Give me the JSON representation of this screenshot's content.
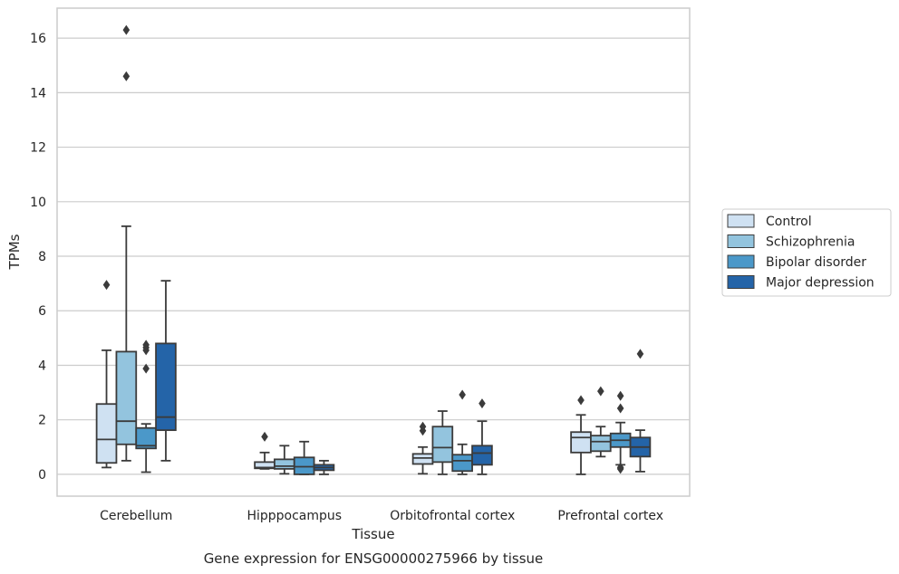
{
  "chart_data": {
    "type": "box",
    "xlabel": "Tissue",
    "ylabel": "TPMs",
    "caption": "Gene expression for ENSG00000275966 by tissue",
    "ylim": [
      -0.8,
      17.1
    ],
    "yticks": [
      0,
      2,
      4,
      6,
      8,
      10,
      12,
      14,
      16
    ],
    "grid": true,
    "legend_position": "right",
    "categories": [
      "Cerebellum",
      "Hipppocampus",
      "Orbitofrontal cortex",
      "Prefrontal cortex"
    ],
    "series": [
      {
        "name": "Control",
        "color": "#cfe1f2",
        "boxes": [
          {
            "whislo": 0.25,
            "q1": 0.42,
            "med": 1.28,
            "q3": 2.58,
            "whishi": 4.55,
            "fliers": [
              6.95
            ]
          },
          {
            "whislo": 0.2,
            "q1": 0.22,
            "med": 0.25,
            "q3": 0.45,
            "whishi": 0.8,
            "fliers": [
              1.38
            ]
          },
          {
            "whislo": 0.02,
            "q1": 0.38,
            "med": 0.6,
            "q3": 0.75,
            "whishi": 1.0,
            "fliers": [
              1.6,
              1.75
            ]
          },
          {
            "whislo": 0.0,
            "q1": 0.8,
            "med": 1.35,
            "q3": 1.55,
            "whishi": 2.18,
            "fliers": [
              2.72
            ]
          }
        ]
      },
      {
        "name": "Schizophrenia",
        "color": "#93c4de",
        "boxes": [
          {
            "whislo": 0.5,
            "q1": 1.1,
            "med": 1.95,
            "q3": 4.5,
            "whishi": 9.1,
            "fliers": [
              14.6,
              16.3
            ]
          },
          {
            "whislo": 0.02,
            "q1": 0.2,
            "med": 0.3,
            "q3": 0.55,
            "whishi": 1.05,
            "fliers": []
          },
          {
            "whislo": 0.0,
            "q1": 0.45,
            "med": 0.98,
            "q3": 1.75,
            "whishi": 2.32,
            "fliers": []
          },
          {
            "whislo": 0.65,
            "q1": 0.85,
            "med": 1.2,
            "q3": 1.42,
            "whishi": 1.75,
            "fliers": [
              3.05
            ]
          }
        ]
      },
      {
        "name": "Bipolar disorder",
        "color": "#4b98c9",
        "boxes": [
          {
            "whislo": 0.08,
            "q1": 0.95,
            "med": 1.05,
            "q3": 1.7,
            "whishi": 1.85,
            "fliers": [
              3.88,
              4.55,
              4.65,
              4.75
            ]
          },
          {
            "whislo": 0.0,
            "q1": 0.0,
            "med": 0.28,
            "q3": 0.62,
            "whishi": 1.2,
            "fliers": []
          },
          {
            "whislo": 0.0,
            "q1": 0.12,
            "med": 0.5,
            "q3": 0.72,
            "whishi": 1.1,
            "fliers": [
              2.92
            ]
          },
          {
            "whislo": 0.35,
            "q1": 1.0,
            "med": 1.25,
            "q3": 1.5,
            "whishi": 1.9,
            "fliers": [
              0.2,
              0.25,
              2.42,
              2.88
            ]
          }
        ]
      },
      {
        "name": "Major depression",
        "color": "#2464a8",
        "boxes": [
          {
            "whislo": 0.5,
            "q1": 1.62,
            "med": 2.1,
            "q3": 4.8,
            "whishi": 7.1,
            "fliers": []
          },
          {
            "whislo": 0.0,
            "q1": 0.15,
            "med": 0.25,
            "q3": 0.35,
            "whishi": 0.5,
            "fliers": []
          },
          {
            "whislo": 0.0,
            "q1": 0.35,
            "med": 0.78,
            "q3": 1.05,
            "whishi": 1.95,
            "fliers": [
              2.6
            ]
          },
          {
            "whislo": 0.1,
            "q1": 0.65,
            "med": 1.0,
            "q3": 1.35,
            "whishi": 1.62,
            "fliers": [
              4.42
            ]
          }
        ]
      }
    ]
  }
}
